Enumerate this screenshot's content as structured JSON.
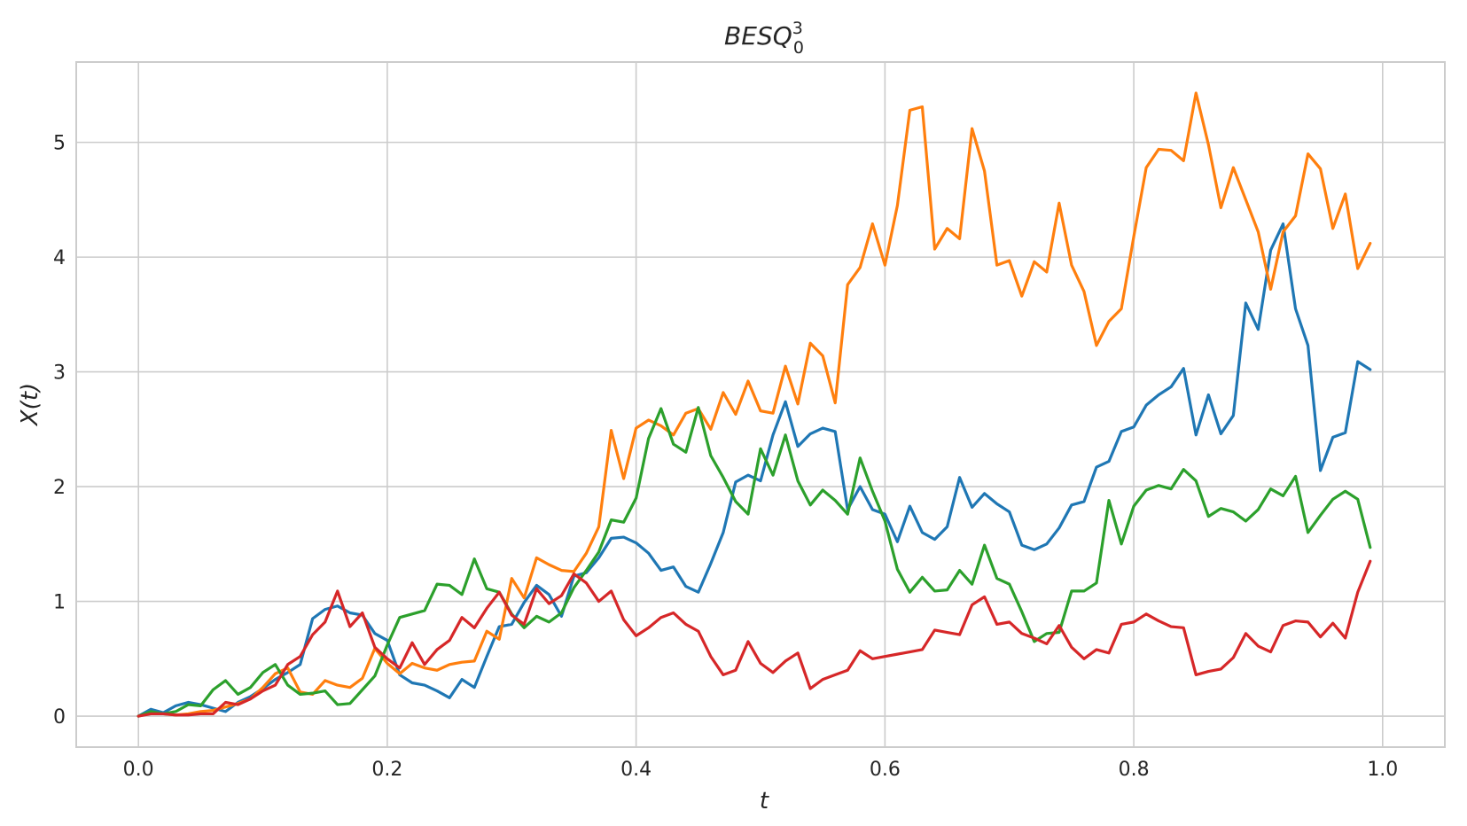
{
  "chart_data": {
    "type": "line",
    "title": "BESQ",
    "title_superscript": "3",
    "title_subscript": "0",
    "xlabel": "t",
    "ylabel": "X(t)",
    "xlim": [
      -0.05,
      1.05
    ],
    "ylim": [
      -0.27,
      5.7
    ],
    "xticks": [
      0.0,
      0.2,
      0.4,
      0.6,
      0.8,
      1.0
    ],
    "xtick_labels": [
      "0.0",
      "0.2",
      "0.4",
      "0.6",
      "0.8",
      "1.0"
    ],
    "yticks": [
      0,
      1,
      2,
      3,
      4,
      5
    ],
    "ytick_labels": [
      "0",
      "1",
      "2",
      "3",
      "4",
      "5"
    ],
    "grid": true,
    "colors": {
      "series_1": "#1f77b4",
      "series_2": "#ff7f0e",
      "series_3": "#2ca02c",
      "series_4": "#d62728",
      "grid": "#cccccc",
      "text": "#262626"
    },
    "x_start": 0.0,
    "x_step": 0.01,
    "series": [
      {
        "color": "#1f77b4",
        "values": [
          0.0,
          0.06,
          0.03,
          0.09,
          0.12,
          0.1,
          0.07,
          0.04,
          0.12,
          0.17,
          0.24,
          0.32,
          0.38,
          0.45,
          0.85,
          0.93,
          0.96,
          0.9,
          0.88,
          0.72,
          0.66,
          0.36,
          0.29,
          0.27,
          0.22,
          0.16,
          0.32,
          0.25,
          0.52,
          0.78,
          0.8,
          0.99,
          1.14,
          1.06,
          0.87,
          1.22,
          1.25,
          1.38,
          1.55,
          1.56,
          1.51,
          1.42,
          1.27,
          1.3,
          1.13,
          1.08,
          1.33,
          1.6,
          2.04,
          2.1,
          2.05,
          2.45,
          2.74,
          2.35,
          2.46,
          2.51,
          2.48,
          1.8,
          2.0,
          1.8,
          1.76,
          1.52,
          1.83,
          1.6,
          1.54,
          1.65,
          2.08,
          1.82,
          1.94,
          1.85,
          1.78,
          1.49,
          1.45,
          1.5,
          1.64,
          1.84,
          1.87,
          2.17,
          2.22,
          2.48,
          2.52,
          2.71,
          2.8,
          2.87,
          3.03,
          2.45,
          2.8,
          2.46,
          2.62,
          3.6,
          3.37,
          4.06,
          4.29,
          3.55,
          3.23,
          2.14,
          2.43,
          2.47,
          3.09,
          3.02
        ]
      },
      {
        "color": "#ff7f0e",
        "values": [
          0.0,
          0.03,
          0.02,
          0.01,
          0.02,
          0.04,
          0.05,
          0.08,
          0.11,
          0.15,
          0.25,
          0.37,
          0.42,
          0.21,
          0.19,
          0.31,
          0.27,
          0.25,
          0.33,
          0.59,
          0.46,
          0.37,
          0.46,
          0.42,
          0.4,
          0.45,
          0.47,
          0.48,
          0.74,
          0.67,
          1.2,
          1.03,
          1.38,
          1.32,
          1.27,
          1.26,
          1.42,
          1.65,
          2.49,
          2.07,
          2.51,
          2.58,
          2.53,
          2.45,
          2.64,
          2.68,
          2.5,
          2.82,
          2.63,
          2.92,
          2.66,
          2.64,
          3.05,
          2.72,
          3.25,
          3.14,
          2.73,
          3.76,
          3.91,
          4.29,
          3.93,
          4.45,
          5.28,
          5.31,
          4.07,
          4.25,
          4.16,
          5.12,
          4.75,
          3.93,
          3.97,
          3.66,
          3.96,
          3.87,
          4.47,
          3.93,
          3.7,
          3.23,
          3.44,
          3.55,
          4.18,
          4.78,
          4.94,
          4.93,
          4.84,
          5.43,
          4.98,
          4.43,
          4.78,
          4.5,
          4.22,
          3.72,
          4.22,
          4.36,
          4.9,
          4.77,
          4.25,
          4.55,
          3.9,
          4.12
        ]
      },
      {
        "color": "#2ca02c",
        "values": [
          0.0,
          0.04,
          0.02,
          0.04,
          0.1,
          0.09,
          0.23,
          0.31,
          0.19,
          0.25,
          0.38,
          0.45,
          0.27,
          0.19,
          0.2,
          0.22,
          0.1,
          0.11,
          0.23,
          0.35,
          0.62,
          0.86,
          0.89,
          0.92,
          1.15,
          1.14,
          1.06,
          1.37,
          1.11,
          1.08,
          0.89,
          0.77,
          0.87,
          0.82,
          0.9,
          1.12,
          1.27,
          1.43,
          1.71,
          1.69,
          1.9,
          2.42,
          2.68,
          2.37,
          2.3,
          2.69,
          2.27,
          2.08,
          1.87,
          1.76,
          2.33,
          2.1,
          2.45,
          2.05,
          1.84,
          1.97,
          1.88,
          1.76,
          2.25,
          1.96,
          1.7,
          1.28,
          1.08,
          1.21,
          1.09,
          1.1,
          1.27,
          1.15,
          1.49,
          1.2,
          1.15,
          0.91,
          0.65,
          0.72,
          0.73,
          1.09,
          1.09,
          1.16,
          1.88,
          1.5,
          1.83,
          1.97,
          2.01,
          1.98,
          2.15,
          2.05,
          1.74,
          1.81,
          1.78,
          1.7,
          1.8,
          1.98,
          1.92,
          2.09,
          1.6,
          1.75,
          1.89,
          1.96,
          1.89,
          1.47
        ]
      },
      {
        "color": "#d62728",
        "values": [
          0.0,
          0.02,
          0.02,
          0.01,
          0.01,
          0.02,
          0.02,
          0.12,
          0.1,
          0.15,
          0.22,
          0.27,
          0.45,
          0.52,
          0.71,
          0.82,
          1.09,
          0.78,
          0.9,
          0.6,
          0.5,
          0.42,
          0.64,
          0.45,
          0.58,
          0.66,
          0.86,
          0.77,
          0.94,
          1.08,
          0.88,
          0.8,
          1.11,
          0.98,
          1.05,
          1.24,
          1.16,
          1.0,
          1.09,
          0.84,
          0.7,
          0.77,
          0.86,
          0.9,
          0.8,
          0.74,
          0.52,
          0.36,
          0.4,
          0.65,
          0.46,
          0.38,
          0.48,
          0.55,
          0.24,
          0.32,
          0.36,
          0.4,
          0.57,
          0.5,
          0.52,
          0.54,
          0.56,
          0.58,
          0.75,
          0.73,
          0.71,
          0.97,
          1.04,
          0.8,
          0.82,
          0.72,
          0.68,
          0.63,
          0.79,
          0.6,
          0.5,
          0.58,
          0.55,
          0.8,
          0.82,
          0.89,
          0.83,
          0.78,
          0.77,
          0.36,
          0.39,
          0.41,
          0.51,
          0.72,
          0.61,
          0.56,
          0.79,
          0.83,
          0.82,
          0.69,
          0.81,
          0.68,
          1.08,
          1.35
        ]
      }
    ]
  }
}
